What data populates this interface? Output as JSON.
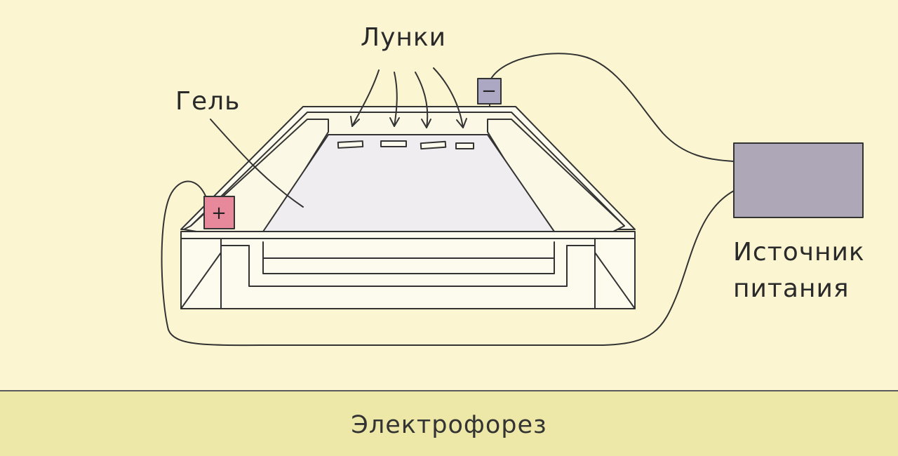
{
  "labels": {
    "wells": "Лунки",
    "gel": "Гель",
    "power_line1": "Источник",
    "power_line2": "питания"
  },
  "electrodes": {
    "positive": "+",
    "negative": "−"
  },
  "footer": {
    "title": "Электрофорез"
  },
  "colors": {
    "background": "#fbf5d2",
    "footer": "#ede8a8",
    "gel": "#efedf0",
    "power_supply": "#aea7b8",
    "positive_electrode": "#e8889b",
    "negative_electrode": "#aca8c4"
  }
}
